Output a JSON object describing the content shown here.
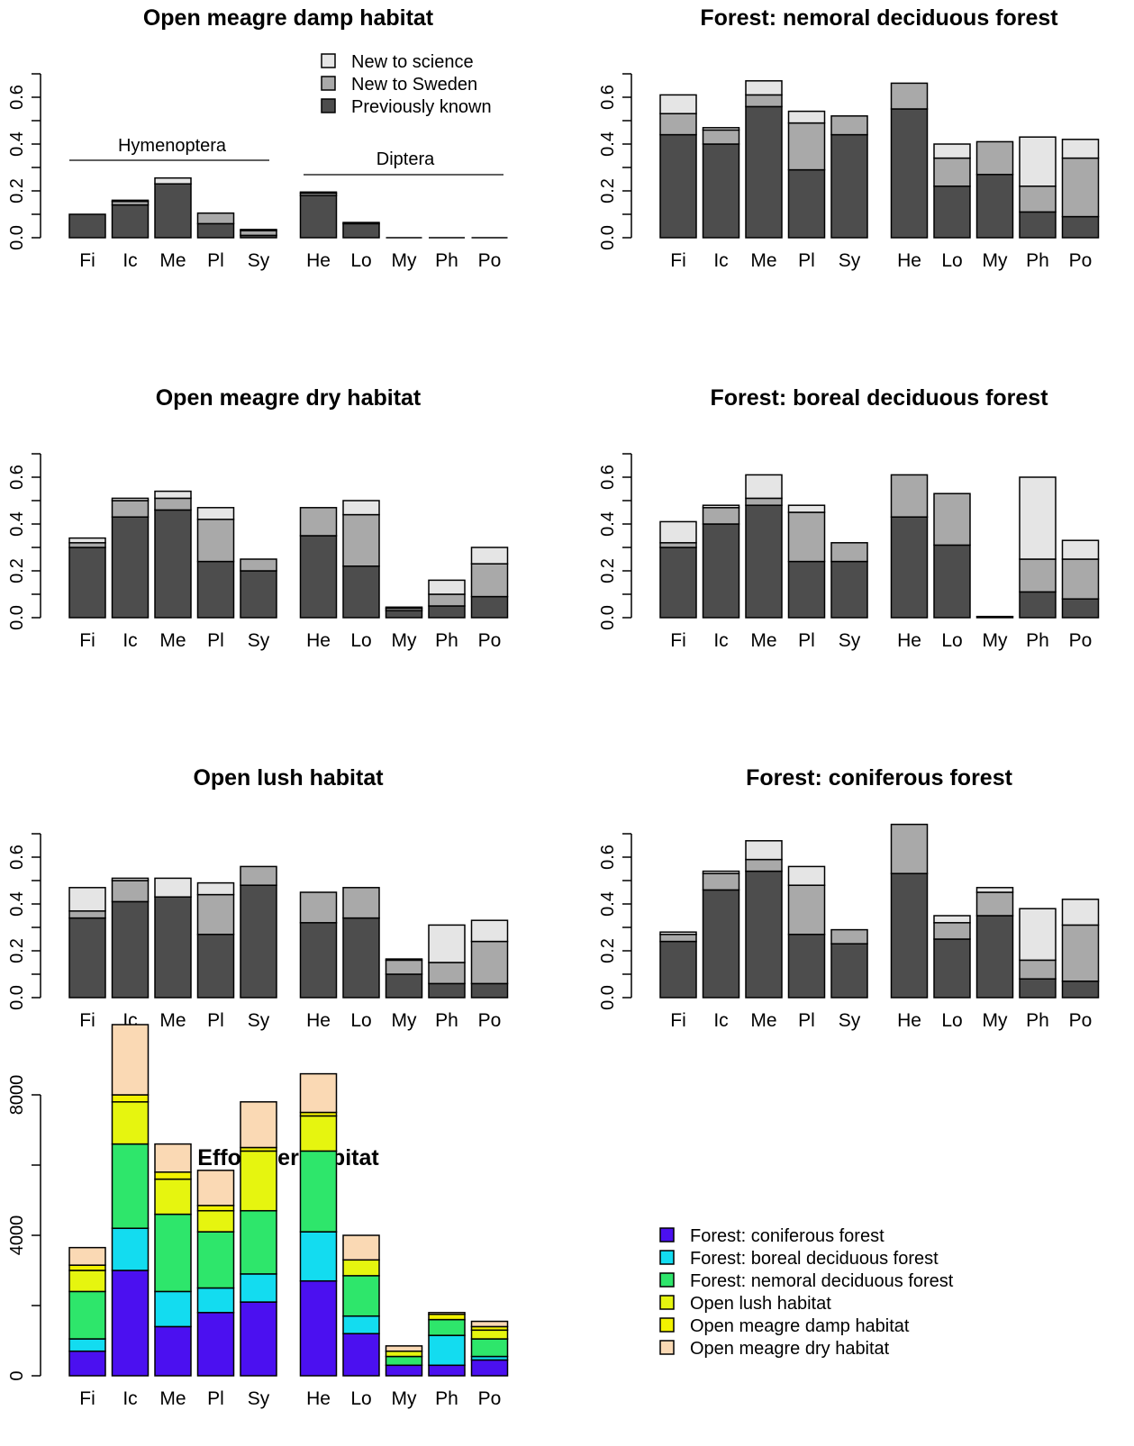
{
  "categories": [
    "Fi",
    "Ic",
    "Me",
    "Pl",
    "Sy",
    "He",
    "Lo",
    "My",
    "Ph",
    "Po"
  ],
  "prop_legend": [
    {
      "label": "New to science",
      "color": "#e5e5e5"
    },
    {
      "label": "New to Sweden",
      "color": "#a9a9a9"
    },
    {
      "label": "Previously known",
      "color": "#4d4d4d"
    }
  ],
  "group_labels": {
    "hymenoptera": "Hymenoptera",
    "diptera": "Diptera"
  },
  "effort_legend": [
    {
      "label": "Forest: coniferous forest",
      "color": "#4b10f0"
    },
    {
      "label": "Forest: boreal deciduous forest",
      "color": "#13dcf0"
    },
    {
      "label": "Forest: nemoral deciduous forest",
      "color": "#2ee66b"
    },
    {
      "label": "Open lush habitat",
      "color": "#e6f50f"
    },
    {
      "label": "Open meagre damp habitat",
      "color": "#f2f200"
    },
    {
      "label": "Open meagre dry habitat",
      "color": "#fad9b4"
    }
  ],
  "chart_data": [
    {
      "type": "bar",
      "stacked": true,
      "title": "Open meagre damp habitat",
      "categories": [
        "Fi",
        "Ic",
        "Me",
        "Pl",
        "Sy",
        "He",
        "Lo",
        "My",
        "Ph",
        "Po"
      ],
      "ylim": [
        0,
        0.7
      ],
      "yticks": [
        "0.0",
        "0.2",
        "0.4",
        "0.6"
      ],
      "series": [
        {
          "name": "Previously known",
          "values": [
            0.1,
            0.14,
            0.23,
            0.06,
            0.01,
            0.18,
            0.06,
            0.0,
            0.0,
            0.0
          ]
        },
        {
          "name": "New to Sweden",
          "values": [
            0.0,
            0.015,
            0.0,
            0.045,
            0.02,
            0.01,
            0.005,
            0.0,
            0.0,
            0.0
          ]
        },
        {
          "name": "New to science",
          "values": [
            0.0,
            0.005,
            0.025,
            0.0,
            0.005,
            0.005,
            0.0,
            0.0,
            0.0,
            0.0
          ]
        }
      ],
      "legend": "top"
    },
    {
      "type": "bar",
      "stacked": true,
      "title": "Forest: nemoral deciduous forest",
      "categories": [
        "Fi",
        "Ic",
        "Me",
        "Pl",
        "Sy",
        "He",
        "Lo",
        "My",
        "Ph",
        "Po"
      ],
      "ylim": [
        0,
        0.7
      ],
      "yticks": [
        "0.0",
        "0.2",
        "0.4",
        "0.6"
      ],
      "series": [
        {
          "name": "Previously known",
          "values": [
            0.44,
            0.4,
            0.56,
            0.29,
            0.44,
            0.55,
            0.22,
            0.27,
            0.11,
            0.09
          ]
        },
        {
          "name": "New to Sweden",
          "values": [
            0.09,
            0.06,
            0.05,
            0.2,
            0.08,
            0.11,
            0.12,
            0.14,
            0.11,
            0.25
          ]
        },
        {
          "name": "New to science",
          "values": [
            0.08,
            0.01,
            0.06,
            0.05,
            0.0,
            0.0,
            0.06,
            0.0,
            0.21,
            0.08
          ]
        }
      ]
    },
    {
      "type": "bar",
      "stacked": true,
      "title": "Open meagre dry habitat",
      "categories": [
        "Fi",
        "Ic",
        "Me",
        "Pl",
        "Sy",
        "He",
        "Lo",
        "My",
        "Ph",
        "Po"
      ],
      "ylim": [
        0,
        0.7
      ],
      "yticks": [
        "0.0",
        "0.2",
        "0.4",
        "0.6"
      ],
      "series": [
        {
          "name": "Previously known",
          "values": [
            0.3,
            0.43,
            0.46,
            0.24,
            0.2,
            0.35,
            0.22,
            0.03,
            0.05,
            0.09
          ]
        },
        {
          "name": "New to Sweden",
          "values": [
            0.02,
            0.07,
            0.05,
            0.18,
            0.05,
            0.12,
            0.22,
            0.01,
            0.05,
            0.14
          ]
        },
        {
          "name": "New to science",
          "values": [
            0.02,
            0.01,
            0.03,
            0.05,
            0.0,
            0.0,
            0.06,
            0.005,
            0.06,
            0.07
          ]
        }
      ]
    },
    {
      "type": "bar",
      "stacked": true,
      "title": "Forest: boreal deciduous forest",
      "categories": [
        "Fi",
        "Ic",
        "Me",
        "Pl",
        "Sy",
        "He",
        "Lo",
        "My",
        "Ph",
        "Po"
      ],
      "ylim": [
        0,
        0.7
      ],
      "yticks": [
        "0.0",
        "0.2",
        "0.4",
        "0.6"
      ],
      "series": [
        {
          "name": "Previously known",
          "values": [
            0.3,
            0.4,
            0.48,
            0.24,
            0.24,
            0.43,
            0.31,
            0.005,
            0.11,
            0.08
          ]
        },
        {
          "name": "New to Sweden",
          "values": [
            0.02,
            0.07,
            0.03,
            0.21,
            0.08,
            0.18,
            0.22,
            0.0,
            0.14,
            0.17
          ]
        },
        {
          "name": "New to science",
          "values": [
            0.09,
            0.01,
            0.1,
            0.03,
            0.0,
            0.0,
            0.0,
            0.0,
            0.35,
            0.08
          ]
        }
      ]
    },
    {
      "type": "bar",
      "stacked": true,
      "title": "Open lush habitat",
      "categories": [
        "Fi",
        "Ic",
        "Me",
        "Pl",
        "Sy",
        "He",
        "Lo",
        "My",
        "Ph",
        "Po"
      ],
      "ylim": [
        0,
        0.7
      ],
      "yticks": [
        "0.0",
        "0.2",
        "0.4",
        "0.6"
      ],
      "series": [
        {
          "name": "Previously known",
          "values": [
            0.34,
            0.41,
            0.43,
            0.27,
            0.48,
            0.32,
            0.34,
            0.1,
            0.06,
            0.06
          ]
        },
        {
          "name": "New to Sweden",
          "values": [
            0.03,
            0.09,
            0.0,
            0.17,
            0.08,
            0.13,
            0.13,
            0.06,
            0.09,
            0.18
          ]
        },
        {
          "name": "New to science",
          "values": [
            0.1,
            0.01,
            0.08,
            0.05,
            0.0,
            0.0,
            0.0,
            0.005,
            0.16,
            0.09
          ]
        }
      ]
    },
    {
      "type": "bar",
      "stacked": true,
      "title": "Forest: coniferous forest",
      "categories": [
        "Fi",
        "Ic",
        "Me",
        "Pl",
        "Sy",
        "He",
        "Lo",
        "My",
        "Ph",
        "Po"
      ],
      "ylim": [
        0,
        0.7
      ],
      "yticks": [
        "0.0",
        "0.2",
        "0.4",
        "0.6"
      ],
      "series": [
        {
          "name": "Previously known",
          "values": [
            0.24,
            0.46,
            0.54,
            0.27,
            0.23,
            0.53,
            0.25,
            0.35,
            0.08,
            0.07
          ]
        },
        {
          "name": "New to Sweden",
          "values": [
            0.03,
            0.07,
            0.05,
            0.21,
            0.06,
            0.21,
            0.07,
            0.1,
            0.08,
            0.24
          ]
        },
        {
          "name": "New to science",
          "values": [
            0.01,
            0.01,
            0.08,
            0.08,
            0.0,
            0.0,
            0.03,
            0.02,
            0.22,
            0.11
          ]
        }
      ]
    },
    {
      "type": "bar",
      "stacked": true,
      "title": "Effort per habitat",
      "categories": [
        "Fi",
        "Ic",
        "Me",
        "Pl",
        "Sy",
        "He",
        "Lo",
        "My",
        "Ph",
        "Po"
      ],
      "ylim": [
        0,
        10000
      ],
      "yticks": [
        "0",
        "4000",
        "8000"
      ],
      "series": [
        {
          "name": "Forest: coniferous forest",
          "values": [
            700,
            3000,
            1400,
            1800,
            2100,
            2700,
            1200,
            300,
            300,
            450
          ]
        },
        {
          "name": "Forest: boreal deciduous forest",
          "values": [
            350,
            1200,
            1000,
            700,
            800,
            1400,
            500,
            0,
            850,
            100
          ]
        },
        {
          "name": "Forest: nemoral deciduous forest",
          "values": [
            1350,
            2400,
            2200,
            1600,
            1800,
            2300,
            1150,
            250,
            450,
            500
          ]
        },
        {
          "name": "Open lush habitat",
          "values": [
            600,
            1200,
            1000,
            600,
            1700,
            1000,
            450,
            150,
            0,
            250
          ]
        },
        {
          "name": "Open meagre damp habitat",
          "values": [
            150,
            200,
            200,
            150,
            100,
            100,
            0,
            0,
            150,
            100
          ]
        },
        {
          "name": "Open meagre dry habitat",
          "values": [
            500,
            2000,
            800,
            1000,
            1300,
            1100,
            700,
            150,
            50,
            150
          ]
        }
      ],
      "legend": "right"
    }
  ]
}
